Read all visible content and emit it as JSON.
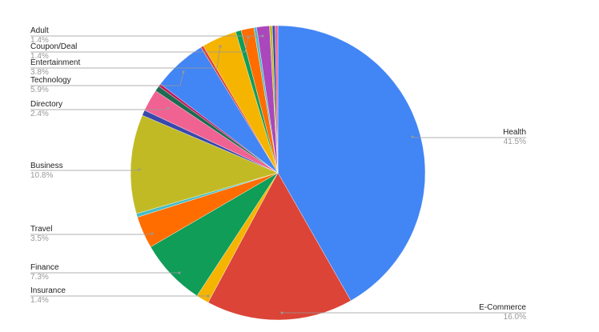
{
  "chart_data": {
    "type": "pie",
    "title": "",
    "start_angle": "top",
    "direction": "clockwise",
    "legend": "none",
    "slices": [
      {
        "name": "Health",
        "value": 41.5,
        "label": "41.5%",
        "color": "#4285f4"
      },
      {
        "name": "E-Commerce",
        "value": 16.0,
        "label": "16.0%",
        "color": "#db4437"
      },
      {
        "name": "Insurance",
        "value": 1.4,
        "label": "1.4%",
        "color": "#f4b400"
      },
      {
        "name": "Finance",
        "value": 7.3,
        "label": "7.3%",
        "color": "#0f9d58"
      },
      {
        "name": "Travel",
        "value": 3.5,
        "label": "3.5%",
        "color": "#ff6d00"
      },
      {
        "name": "",
        "value": 0.4,
        "color": "#46bdc6"
      },
      {
        "name": "Business",
        "value": 10.8,
        "label": "10.8%",
        "color": "#c2ba24"
      },
      {
        "name": "",
        "value": 0.6,
        "color": "#3949ab"
      },
      {
        "name": "Directory",
        "value": 2.4,
        "label": "2.4%",
        "color": "#f06292"
      },
      {
        "name": "",
        "value": 0.6,
        "color": "#1e6b52"
      },
      {
        "name": "",
        "value": 0.3,
        "color": "#c2185b"
      },
      {
        "name": "Technology",
        "value": 5.9,
        "label": "5.9%",
        "color": "#4285f4"
      },
      {
        "name": "",
        "value": 0.3,
        "color": "#db4437"
      },
      {
        "name": "Entertainment",
        "value": 3.8,
        "label": "3.8%",
        "color": "#f4b400"
      },
      {
        "name": "",
        "value": 0.6,
        "color": "#0f9d58"
      },
      {
        "name": "Coupon/Deal",
        "value": 1.4,
        "label": "1.4%",
        "color": "#ff6d00"
      },
      {
        "name": "",
        "value": 0.3,
        "color": "#46bdc6"
      },
      {
        "name": "Adult",
        "value": 1.4,
        "label": "1.4%",
        "color": "#ab47bc"
      },
      {
        "name": "",
        "value": 0.3,
        "color": "#c2ba24"
      },
      {
        "name": "",
        "value": 0.3,
        "color": "#3949ab"
      },
      {
        "name": "",
        "value": 0.3,
        "color": "#f06292"
      }
    ]
  }
}
